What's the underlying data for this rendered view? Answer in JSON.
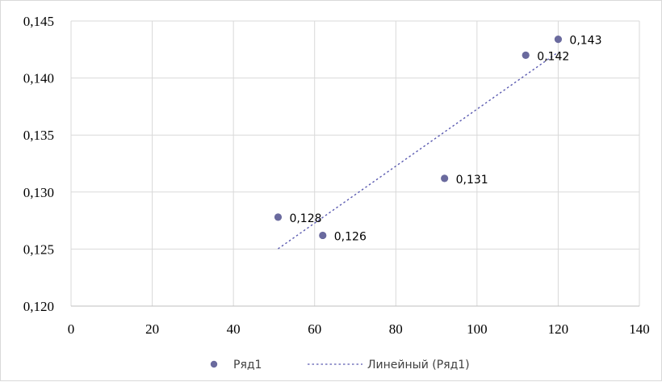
{
  "chart_data": {
    "type": "scatter",
    "title": "",
    "xlabel": "",
    "ylabel": "",
    "xlim": [
      0,
      140
    ],
    "ylim": [
      0.12,
      0.145
    ],
    "xticks": [
      0,
      20,
      40,
      60,
      80,
      100,
      120,
      140
    ],
    "yticks": [
      0.12,
      0.125,
      0.13,
      0.135,
      0.14,
      0.145
    ],
    "xtick_labels": [
      "0",
      "20",
      "40",
      "60",
      "80",
      "100",
      "120",
      "140"
    ],
    "ytick_labels": [
      "0,120",
      "0,125",
      "0,130",
      "0,135",
      "0,140",
      "0,145"
    ],
    "grid": true,
    "legend_position": "bottom",
    "series": [
      {
        "name": "Ряд1",
        "color": "#6a6a9e",
        "points": [
          {
            "x": 51,
            "y": 0.1278,
            "label": "0,128"
          },
          {
            "x": 62,
            "y": 0.1262,
            "label": "0,126"
          },
          {
            "x": 92,
            "y": 0.1312,
            "label": "0,131"
          },
          {
            "x": 112,
            "y": 0.142,
            "label": "0,142"
          },
          {
            "x": 120,
            "y": 0.1434,
            "label": "0,143"
          }
        ]
      }
    ],
    "trendline": {
      "name": "Линейный (Ряд1)",
      "type": "linear",
      "color": "#5a5ab0",
      "x_range": [
        51,
        120
      ]
    }
  },
  "legend": {
    "series_label": "Ряд1",
    "trend_label": "Линейный (Ряд1)"
  }
}
